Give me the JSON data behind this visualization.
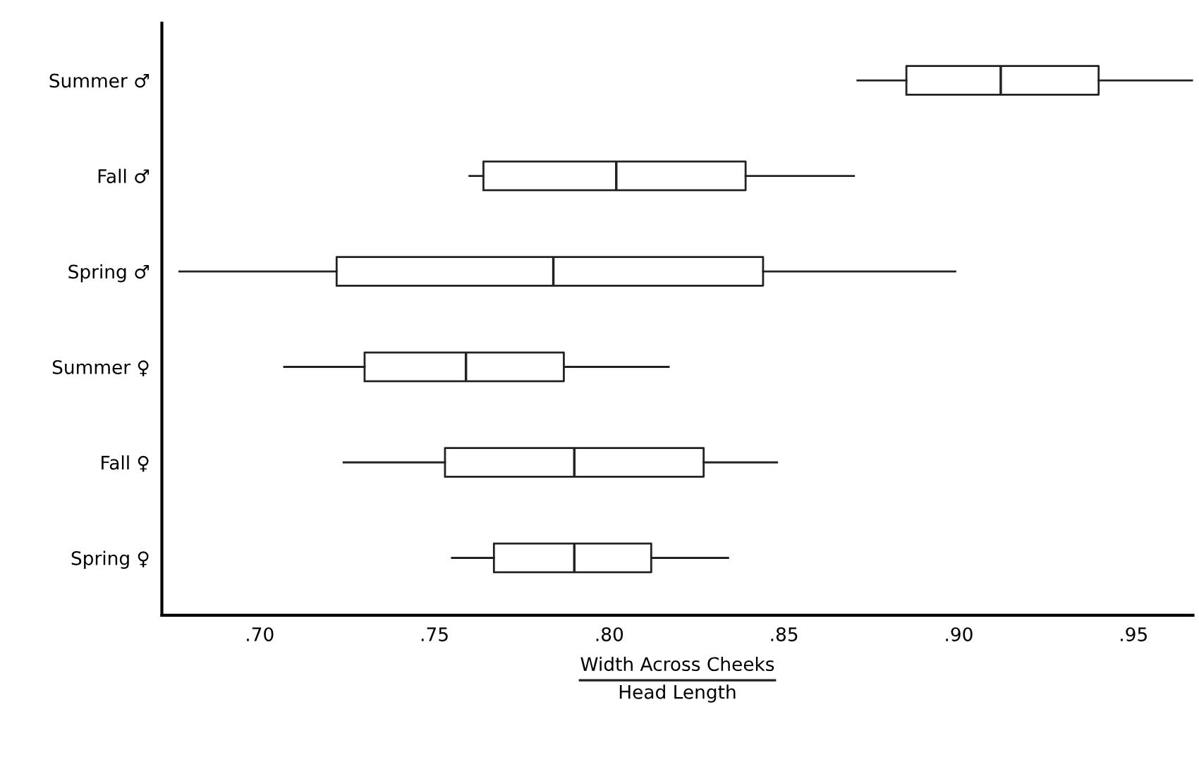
{
  "chart_data": {
    "type": "box",
    "orientation": "horizontal",
    "categories": [
      "Summer ♂",
      "Fall ♂",
      "Spring ♂",
      "Summer ♀",
      "Fall ♀",
      "Spring ♀"
    ],
    "boxes": [
      {
        "low": 0.871,
        "q1": 0.885,
        "median": 0.912,
        "q3": 0.94,
        "high": 0.967
      },
      {
        "low": 0.76,
        "q1": 0.764,
        "median": 0.802,
        "q3": 0.839,
        "high": 0.87
      },
      {
        "low": 0.677,
        "q1": 0.722,
        "median": 0.784,
        "q3": 0.844,
        "high": 0.899
      },
      {
        "low": 0.707,
        "q1": 0.73,
        "median": 0.759,
        "q3": 0.787,
        "high": 0.817
      },
      {
        "low": 0.724,
        "q1": 0.753,
        "median": 0.79,
        "q3": 0.827,
        "high": 0.848
      },
      {
        "low": 0.755,
        "q1": 0.767,
        "median": 0.79,
        "q3": 0.812,
        "high": 0.834
      }
    ],
    "color": "#222222",
    "xlim": [
      0.672,
      0.967
    ],
    "xticks": [
      {
        "value": 0.7,
        "label": ".70"
      },
      {
        "value": 0.75,
        "label": ".75"
      },
      {
        "value": 0.8,
        "label": ".80"
      },
      {
        "value": 0.85,
        "label": ".85"
      },
      {
        "value": 0.9,
        "label": ".90"
      },
      {
        "value": 0.95,
        "label": ".95"
      }
    ],
    "xlabel": "Width Across Cheeks\nHead Length",
    "grid": false
  }
}
